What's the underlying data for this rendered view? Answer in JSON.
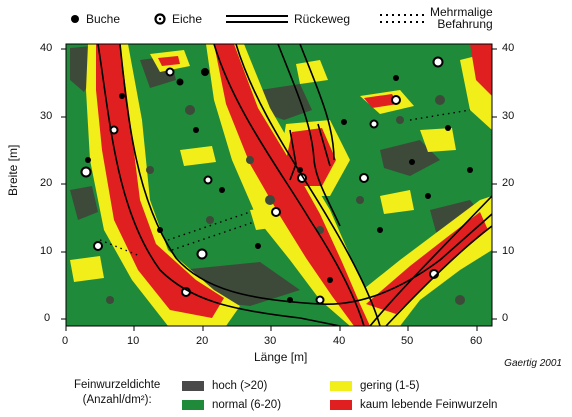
{
  "legend_top": {
    "buche": "Buche",
    "eiche": "Eiche",
    "rueckeweg": "Rückeweg",
    "mehrmalige_line1": "Mehrmalige",
    "mehrmalige_line2": "Befahrung"
  },
  "axes": {
    "x_title": "Länge [m]",
    "y_title": "Breite [m]",
    "x_ticks": [
      "0",
      "10",
      "20",
      "30",
      "40",
      "50",
      "60"
    ],
    "y_ticks": [
      "0",
      "10",
      "20",
      "30",
      "40"
    ]
  },
  "credit": "Gaertig 2001",
  "legend_bottom": {
    "title_line1": "Feinwurzeldichte",
    "title_line2": "(Anzahl/dm²):",
    "items": [
      {
        "label": "hoch (>20)",
        "color": "#4a4a4a"
      },
      {
        "label": "normal (6-20)",
        "color": "#1f8a3a"
      },
      {
        "label": "gering (1-5)",
        "color": "#f2ee1a"
      },
      {
        "label": "kaum lebende Feinwurzeln",
        "color": "#e02020"
      }
    ]
  },
  "colors": {
    "map_green": "#1f8a3a",
    "dark": "#3d4a3a",
    "yellow": "#f2ee1a",
    "red": "#e02020"
  }
}
